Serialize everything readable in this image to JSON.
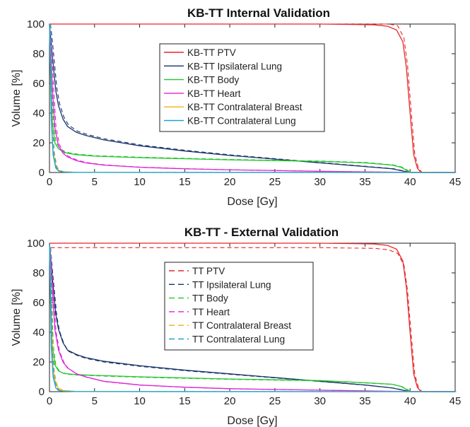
{
  "chart_data": [
    {
      "type": "line",
      "title": "KB-TT Internal Validation",
      "xlabel": "Dose [Gy]",
      "ylabel": "Volume [%]",
      "xlim": [
        0,
        45
      ],
      "ylim": [
        0,
        100
      ],
      "xticks": [
        "0",
        "5",
        "10",
        "15",
        "20",
        "25",
        "30",
        "35",
        "40",
        "45"
      ],
      "yticks": [
        "0",
        "20",
        "40",
        "60",
        "80",
        "100"
      ],
      "legend_position": "upper-center",
      "series": [
        {
          "name": "KB-TT PTV",
          "color": "#e8262a",
          "x": [
            0,
            30,
            36,
            37.5,
            38.5,
            39.2,
            39.6,
            40,
            40.4,
            40.8,
            41.2,
            45
          ],
          "y": [
            100,
            100,
            99.5,
            98.5,
            96,
            88,
            70,
            40,
            12,
            3,
            0,
            0
          ]
        },
        {
          "name": "KB-TT Ipsilateral Lung",
          "color": "#17326b",
          "x": [
            0,
            0.3,
            0.7,
            1,
            1.5,
            2,
            3,
            4,
            6,
            10,
            15,
            20,
            25,
            30,
            35,
            38,
            39.2,
            40,
            45
          ],
          "y": [
            100,
            80,
            55,
            45,
            36,
            31,
            27,
            25,
            22,
            18,
            14.5,
            11.5,
            9,
            6.5,
            4,
            2.5,
            1,
            0,
            0
          ]
        },
        {
          "name": "KB-TT Body",
          "color": "#22c62c",
          "x": [
            0,
            0.3,
            0.6,
            1,
            1.5,
            2,
            3,
            5,
            10,
            20,
            30,
            35,
            38,
            39,
            39.6,
            40,
            45
          ],
          "y": [
            100,
            35,
            20,
            16,
            14,
            13,
            12,
            11,
            10,
            8.5,
            7.5,
            6.5,
            5,
            3.5,
            1.5,
            0,
            0
          ]
        },
        {
          "name": "KB-TT Heart",
          "color": "#e020d8",
          "x": [
            0,
            0.3,
            0.6,
            1,
            1.5,
            2,
            3,
            4,
            6,
            10,
            15,
            20,
            25,
            30,
            38,
            45
          ],
          "y": [
            100,
            60,
            30,
            18,
            13,
            10.5,
            8,
            6.5,
            5,
            3.5,
            2.5,
            1.8,
            1.3,
            0.8,
            0.2,
            0
          ]
        },
        {
          "name": "KB-TT Contralateral Breast",
          "color": "#f0b20c",
          "x": [
            0,
            0.2,
            0.4,
            0.7,
            1,
            1.5,
            3,
            45
          ],
          "y": [
            100,
            40,
            14,
            4,
            1.5,
            0.5,
            0.1,
            0
          ]
        },
        {
          "name": "KB-TT Contralateral Lung",
          "color": "#1ea3d6",
          "x": [
            0,
            0.2,
            0.4,
            0.7,
            1,
            1.5,
            3,
            45
          ],
          "y": [
            100,
            35,
            12,
            3,
            1,
            0.3,
            0.05,
            0
          ]
        }
      ]
    },
    {
      "type": "line",
      "title": "KB-TT -  External Validation",
      "xlabel": "Dose [Gy]",
      "ylabel": "Volume [%]",
      "xlim": [
        0,
        45
      ],
      "ylim": [
        0,
        100
      ],
      "xticks": [
        "0",
        "5",
        "10",
        "15",
        "20",
        "25",
        "30",
        "35",
        "40",
        "45"
      ],
      "yticks": [
        "0",
        "20",
        "40",
        "60",
        "80",
        "100"
      ],
      "legend_position": "upper-center",
      "series": [
        {
          "name": "TT PTV",
          "color": "#e8262a",
          "x": [
            0,
            30,
            36,
            37.5,
            38.5,
            39.2,
            39.6,
            40,
            40.4,
            40.8,
            41.2,
            45
          ],
          "y": [
            100,
            100,
            99.5,
            98.5,
            96,
            88,
            70,
            40,
            12,
            3,
            0,
            0
          ]
        },
        {
          "name": "TT Ipsilateral Lung",
          "color": "#17326b",
          "x": [
            0,
            0.3,
            0.7,
            1,
            1.5,
            2,
            3,
            4,
            6,
            10,
            15,
            20,
            25,
            30,
            35,
            38,
            39.2,
            40,
            45
          ],
          "y": [
            100,
            78,
            52,
            42,
            33,
            28,
            25,
            23,
            20.5,
            17.5,
            14.5,
            12,
            9.5,
            7,
            4.5,
            2.5,
            1,
            0,
            0
          ]
        },
        {
          "name": "TT Body",
          "color": "#22c62c",
          "x": [
            0,
            0.3,
            0.6,
            1,
            1.5,
            2,
            3,
            5,
            10,
            20,
            30,
            35,
            38,
            39,
            39.6,
            40,
            45
          ],
          "y": [
            100,
            32,
            18,
            14,
            12.5,
            12,
            11.5,
            11,
            10,
            8.5,
            7.5,
            6,
            5,
            3.5,
            1.5,
            0,
            0
          ]
        },
        {
          "name": "TT Heart",
          "color": "#e020d8",
          "x": [
            0,
            0.3,
            0.6,
            1,
            1.5,
            2,
            3,
            4,
            6,
            10,
            15,
            20,
            25,
            30,
            38,
            45
          ],
          "y": [
            100,
            70,
            42,
            28,
            20,
            16,
            12,
            10,
            7,
            4.5,
            3,
            2,
            1.5,
            1,
            0.2,
            0
          ]
        },
        {
          "name": "TT Contralateral Breast",
          "color": "#f0b20c",
          "x": [
            0,
            0.2,
            0.4,
            0.7,
            1,
            1.5,
            3,
            45
          ],
          "y": [
            100,
            42,
            15,
            5,
            2,
            0.8,
            0.1,
            0
          ]
        },
        {
          "name": "TT Contralateral Lung",
          "color": "#1ea3d6",
          "x": [
            0,
            0.2,
            0.4,
            0.7,
            1,
            1.5,
            3,
            45
          ],
          "y": [
            100,
            30,
            10,
            2.5,
            0.8,
            0.3,
            0.05,
            0
          ]
        }
      ]
    }
  ]
}
